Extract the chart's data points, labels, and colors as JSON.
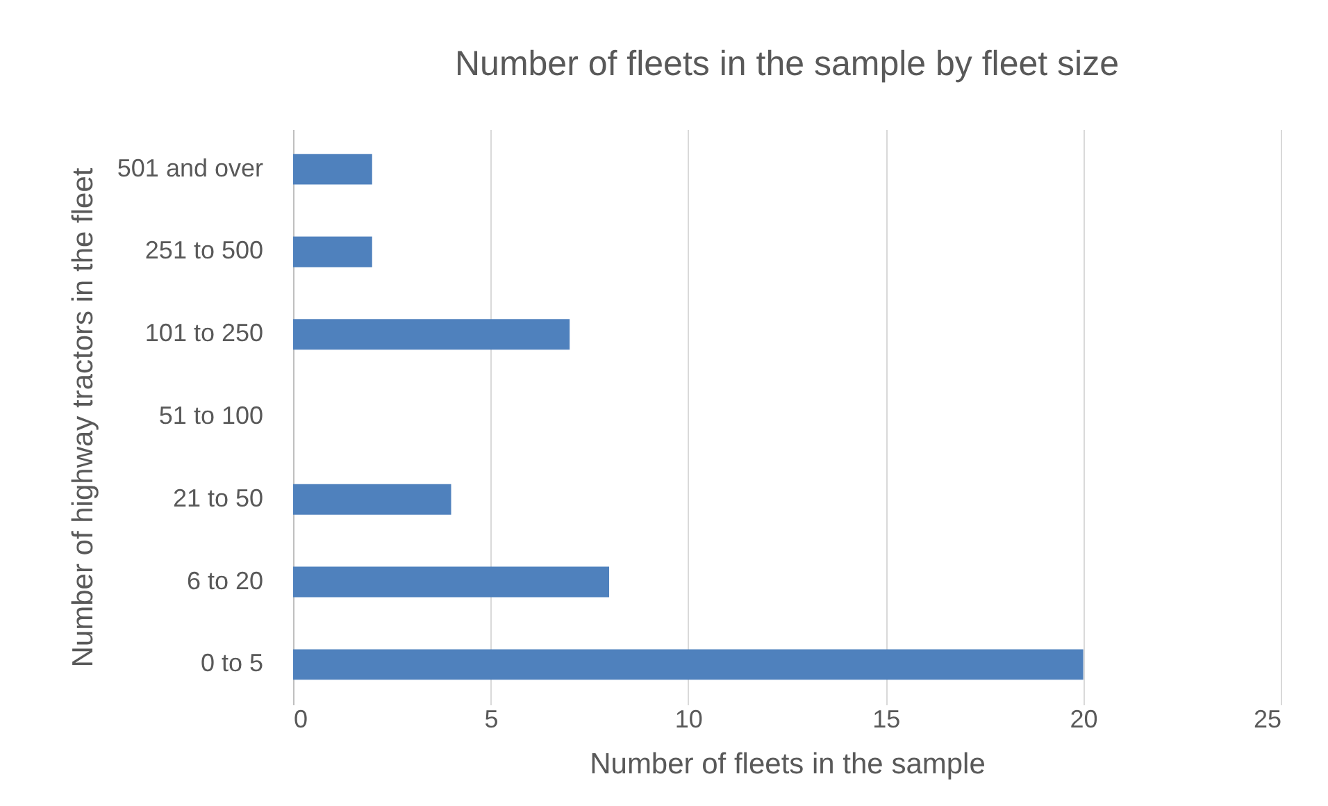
{
  "chart_data": {
    "type": "bar",
    "orientation": "horizontal",
    "title": "Number of fleets in the sample by fleet size",
    "xlabel": "Number of fleets in the sample",
    "ylabel": "Number of highway tractors in the fleet",
    "categories": [
      "501 and over",
      "251 to 500",
      "101 to 250",
      "51 to 100",
      "21 to 50",
      "6 to 20",
      "0 to 5"
    ],
    "values": [
      2,
      2,
      7,
      0,
      4,
      8,
      20
    ],
    "color": "#4f81bd",
    "xlim": [
      0,
      25
    ],
    "xticks": [
      0,
      5,
      10,
      15,
      20,
      25
    ],
    "grid": "x"
  }
}
